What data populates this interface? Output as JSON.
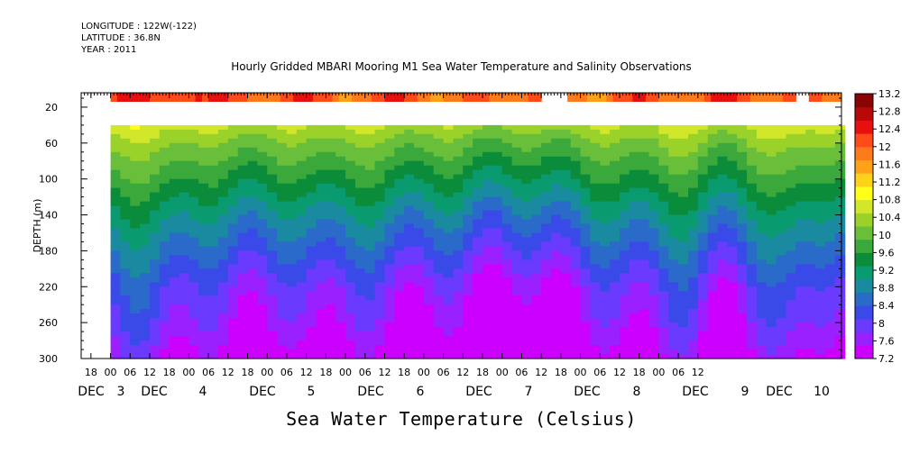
{
  "header": {
    "longitude": "LONGITUDE : 122W(-122)",
    "latitude": "LATITUDE : 36.8N",
    "year": "YEAR : 2011",
    "title": "Hourly Gridded MBARI Mooring M1 Sea Water Temperature and Salinity Observations"
  },
  "footer": {
    "variable_label": "Sea Water Temperature (Celsius)"
  },
  "chart_data": {
    "type": "heatmap",
    "title": "Hourly Gridded MBARI Mooring M1 Sea Water Temperature and Salinity Observations",
    "xlabel": "",
    "ylabel": "DEPTH (m)",
    "colorbar_label": "Sea Water Temperature (Celsius)",
    "x_range_hours": [
      -9,
      224
    ],
    "y_range": [
      4,
      300
    ],
    "y_inverted": true,
    "y_ticks": [
      20,
      60,
      100,
      140,
      180,
      220,
      260,
      300
    ],
    "x_hour_ticks": [
      "18",
      "00",
      "06",
      "12",
      "18",
      "00",
      "06",
      "12",
      "18",
      "00",
      "06",
      "12",
      "18",
      "00",
      "06",
      "12",
      "18",
      "00",
      "06",
      "12",
      "18",
      "00",
      "06",
      "12",
      "18",
      "00",
      "06",
      "12",
      "18",
      "00",
      "06",
      "12"
    ],
    "x_day_labels": [
      "DEC 3",
      "DEC 4",
      "DEC 5",
      "DEC 6",
      "DEC 7",
      "DEC 8",
      "DEC 9",
      "DEC 10"
    ],
    "colorbar_levels": [
      7.2,
      7.6,
      8,
      8.4,
      8.8,
      9.2,
      9.6,
      10,
      10.4,
      10.8,
      11.2,
      11.6,
      12,
      12.4,
      12.8,
      13.2
    ],
    "colorbar_colors": [
      "#cc00ff",
      "#9a20ff",
      "#6a3aff",
      "#3a4ae8",
      "#2a6ac8",
      "#1a8aa0",
      "#0a9a70",
      "#0b8c3a",
      "#3aa83a",
      "#6abf3a",
      "#9ad22a",
      "#d2e62a",
      "#ffff1a",
      "#ffd21a",
      "#ffa21a",
      "#ff7a1a",
      "#ff4a1a",
      "#e80f0f",
      "#b80808",
      "#8a0404"
    ],
    "surface_series": {
      "depth": [
        10
      ],
      "values_approx": [
        12.2,
        12.3,
        12.1,
        12.0,
        12.1,
        11.9,
        12.2,
        11.8,
        12.0,
        12.1,
        11.9,
        12.1,
        12.0,
        12.2,
        12.1,
        11.9
      ]
    },
    "surface_gaps_hours": [
      [
        132,
        140
      ],
      [
        210,
        214
      ]
    ],
    "gap_depths": [
      0,
      40
    ],
    "data_start_hour": 0,
    "profile_depths": [
      40,
      60,
      80,
      100,
      140,
      180,
      220,
      260,
      300
    ],
    "profile_temps_typical": [
      10.6,
      10.2,
      9.9,
      9.6,
      9.0,
      8.5,
      8.0,
      7.7,
      7.3
    ],
    "upwelling_events_hours": [
      40,
      114,
      136,
      186,
      228,
      270
    ],
    "notes_none": ""
  }
}
